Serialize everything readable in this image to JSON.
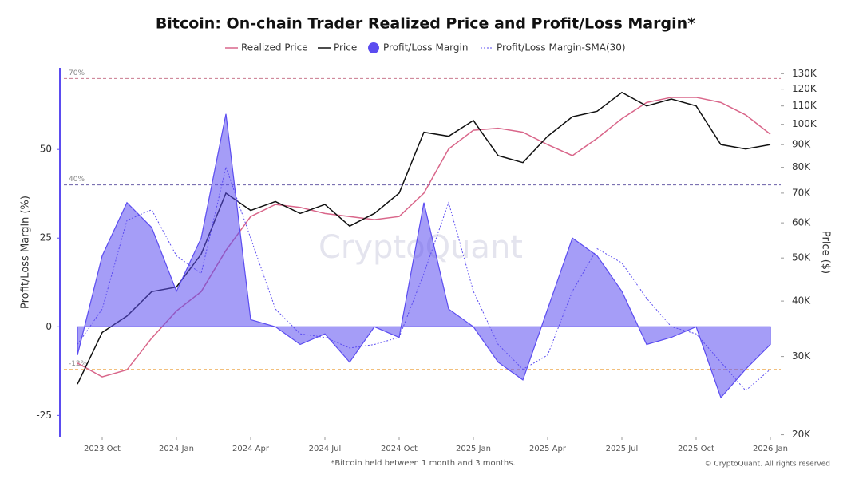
{
  "chart_data": {
    "type": "line",
    "title": "Bitcoin: On-chain Trader Realized Price and Profit/Loss Margin*",
    "footnote": "*Bitcoin held between 1 month and 3 months.",
    "copyright": "© CryptoQuant. All rights reserved",
    "watermark": "CryptoQuant",
    "ylabel": "Profit/Loss Margin (%)",
    "y2label": "Price ($)",
    "x": [
      "2023-09",
      "2023-10",
      "2023-11",
      "2023-12",
      "2024-01",
      "2024-02",
      "2024-03",
      "2024-04",
      "2024-05",
      "2024-06",
      "2024-07",
      "2024-08",
      "2024-09",
      "2024-10",
      "2024-11",
      "2024-12",
      "2025-01",
      "2025-02",
      "2025-03",
      "2025-04",
      "2025-05",
      "2025-06",
      "2025-07",
      "2025-08",
      "2025-09",
      "2025-10",
      "2025-11",
      "2025-12",
      "2026-01"
    ],
    "xticks": [
      {
        "value": "2023-10",
        "label": "2023 Oct"
      },
      {
        "value": "2024-01",
        "label": "2024 Jan"
      },
      {
        "value": "2024-04",
        "label": "2024 Apr"
      },
      {
        "value": "2024-07",
        "label": "2024 Jul"
      },
      {
        "value": "2024-10",
        "label": "2024 Oct"
      },
      {
        "value": "2025-01",
        "label": "2025 Jan"
      },
      {
        "value": "2025-04",
        "label": "2025 Apr"
      },
      {
        "value": "2025-07",
        "label": "2025 Jul"
      },
      {
        "value": "2025-10",
        "label": "2025 Oct"
      },
      {
        "value": "2026-01",
        "label": "2026 Jan"
      }
    ],
    "ylim": [
      -31,
      73
    ],
    "yticks": [
      -25,
      0,
      25,
      50
    ],
    "y2lim": [
      19800,
      134000
    ],
    "y2_log": true,
    "y2ticks": [
      {
        "value": 20000,
        "label": "20K"
      },
      {
        "value": 30000,
        "label": "30K"
      },
      {
        "value": 40000,
        "label": "40K"
      },
      {
        "value": 50000,
        "label": "50K"
      },
      {
        "value": 60000,
        "label": "60K"
      },
      {
        "value": 70000,
        "label": "70K"
      },
      {
        "value": 80000,
        "label": "80K"
      },
      {
        "value": 90000,
        "label": "90K"
      },
      {
        "value": 100000,
        "label": "100K"
      },
      {
        "value": 110000,
        "label": "110K"
      },
      {
        "value": 120000,
        "label": "120K"
      },
      {
        "value": 130000,
        "label": "130K"
      }
    ],
    "reference_lines": [
      {
        "value": 70,
        "label": "70%",
        "color": "#c97a8e"
      },
      {
        "value": 40,
        "label": "40%",
        "color": "#6a5fa8"
      },
      {
        "value": -12,
        "label": "-12%",
        "color": "#f0b66a"
      }
    ],
    "series": [
      {
        "name": "Realized Price",
        "color": "#d9668a",
        "style": "line",
        "axis": "y2",
        "values": [
          29000,
          27000,
          28000,
          33000,
          38000,
          42000,
          52000,
          62000,
          66000,
          65000,
          63000,
          62000,
          61000,
          62000,
          70000,
          88000,
          97000,
          98000,
          96000,
          90000,
          85000,
          93000,
          103000,
          112000,
          115000,
          115000,
          112000,
          105000,
          95000
        ]
      },
      {
        "name": "Price",
        "color": "#111111",
        "style": "line",
        "axis": "y2",
        "values": [
          26000,
          34000,
          37000,
          42000,
          43000,
          51000,
          70000,
          64000,
          67000,
          63000,
          66000,
          59000,
          63000,
          70000,
          96000,
          94000,
          102000,
          85000,
          82000,
          94000,
          104000,
          107000,
          118000,
          110000,
          114000,
          110000,
          90000,
          88000,
          90000
        ]
      },
      {
        "name": "Profit/Loss Margin",
        "color": "#5b4cf0",
        "style": "area",
        "values": [
          -8,
          20,
          35,
          28,
          10,
          25,
          60,
          2,
          0,
          -5,
          -2,
          -10,
          0,
          -3,
          35,
          5,
          0,
          -10,
          -15,
          5,
          25,
          20,
          10,
          -5,
          -3,
          0,
          -20,
          -12,
          -5
        ]
      },
      {
        "name": "Profit/Loss Margin-SMA(30)",
        "color": "#5b4cf0",
        "style": "dotted",
        "values": [
          -5,
          5,
          30,
          33,
          20,
          15,
          45,
          25,
          5,
          -2,
          -3,
          -6,
          -5,
          -3,
          15,
          35,
          10,
          -5,
          -12,
          -8,
          10,
          22,
          18,
          8,
          0,
          -2,
          -10,
          -18,
          -12
        ]
      }
    ]
  }
}
